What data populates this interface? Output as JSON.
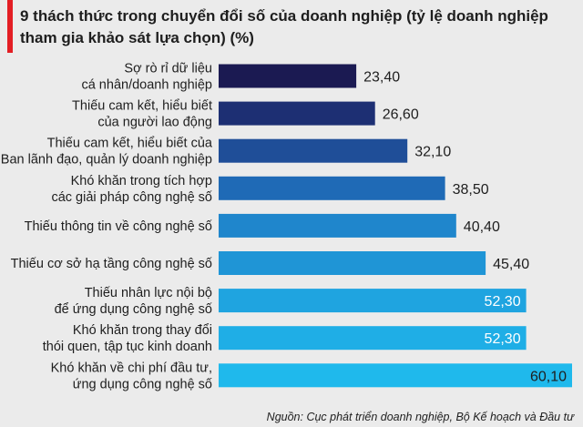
{
  "chart_data": {
    "type": "bar",
    "orientation": "horizontal",
    "title_lines": [
      "9 thách thức trong chuyển đổi số của doanh nghiệp (tỷ lệ doanh nghiệp",
      "tham gia khảo sát lựa chọn) (%)"
    ],
    "categories": [
      [
        "Sợ rò rỉ dữ liệu",
        "cá nhân/doanh nghiệp"
      ],
      [
        "Thiếu cam kết, hiểu biết",
        "của người lao động"
      ],
      [
        "Thiếu cam kết, hiểu biết của",
        "Ban lãnh đạo, quản lý doanh nghiệp"
      ],
      [
        "Khó khăn trong tích hợp",
        "các giải pháp công nghệ số"
      ],
      [
        "Thiếu thông tin về công nghệ số"
      ],
      [
        "Thiếu cơ sở hạ tầng công nghệ số"
      ],
      [
        "Thiếu nhân lực nội bộ",
        "để ứng dụng công nghệ số"
      ],
      [
        "Khó khăn trong thay đổi",
        "thói quen, tập tục kinh doanh"
      ],
      [
        "Khó khăn về chi phí đầu tư,",
        "ứng dụng công nghệ số"
      ]
    ],
    "values": [
      23.4,
      26.6,
      32.1,
      38.5,
      40.4,
      45.4,
      52.3,
      52.3,
      60.1
    ],
    "value_labels": [
      "23,40",
      "26,60",
      "32,10",
      "38,50",
      "40,40",
      "45,40",
      "52,30",
      "52,30",
      "60,10"
    ],
    "colors": [
      "#1b1a52",
      "#1d2f73",
      "#1f4e98",
      "#1f6ab6",
      "#1f86cc",
      "#1f95d6",
      "#1fa4e0",
      "#1faee6",
      "#1fb9ec"
    ],
    "value_label_inside": [
      false,
      false,
      false,
      false,
      false,
      false,
      true,
      true,
      true
    ],
    "xlim": [
      0,
      60.1
    ],
    "legend": "none",
    "grid": false
  },
  "source": "Nguồn: Cục phát triển doanh nghiệp, Bộ Kế hoạch và Đầu tư"
}
